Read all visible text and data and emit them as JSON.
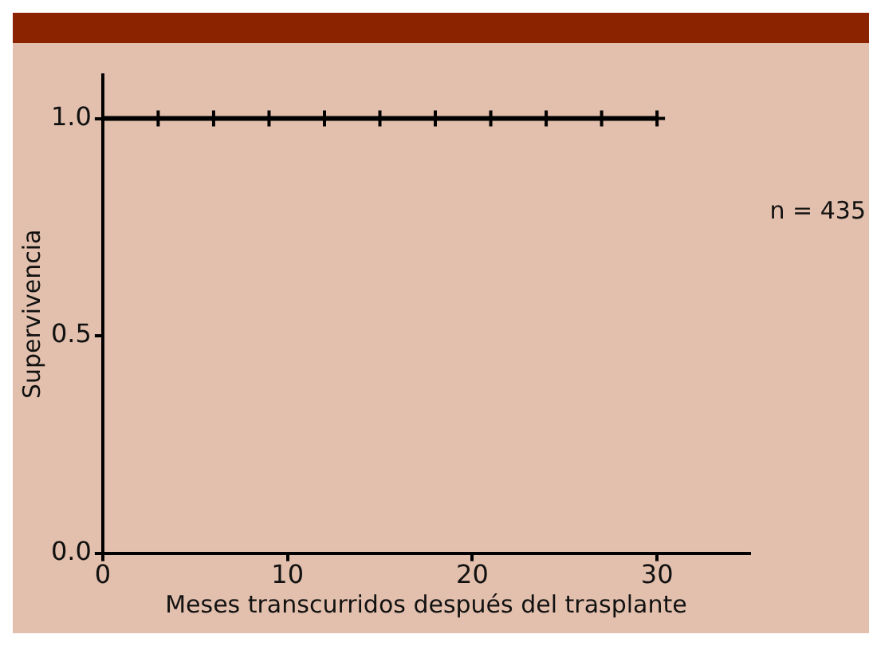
{
  "chart_data": {
    "type": "step",
    "xlabel": "Meses transcurridos después del trasplante",
    "ylabel": "Supervivencia",
    "annotations": [
      "n = 435"
    ],
    "xlim": [
      0,
      35
    ],
    "xticks": [
      0,
      10,
      20,
      30
    ],
    "ylim": [
      0,
      1.1
    ],
    "yticks": [
      {
        "value": 0,
        "label": "0.0"
      },
      {
        "value": 0.5,
        "label": "0.5"
      },
      {
        "value": 1,
        "label": "1.0"
      }
    ],
    "grid": false,
    "legend": false,
    "series": [
      {
        "color": "#000000",
        "x": [
          0,
          30
        ],
        "values": [
          1,
          1
        ]
      },
      {
        "type": "scatter",
        "color": "#000000",
        "marker": "cross",
        "x": [
          3,
          6,
          9,
          12,
          15,
          18,
          21,
          24,
          27,
          30
        ],
        "values": [
          1,
          1,
          1,
          1,
          1,
          1,
          1,
          1,
          1,
          1
        ]
      }
    ]
  }
}
